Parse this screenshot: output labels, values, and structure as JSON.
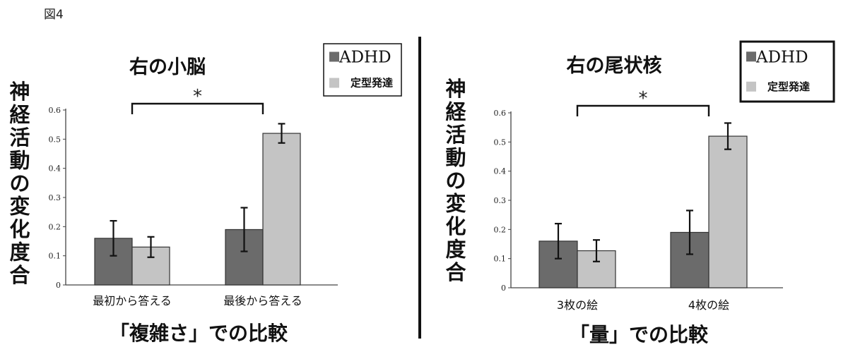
{
  "figure_label": "図4",
  "chart_data": [
    {
      "type": "bar",
      "title": "右の小脳",
      "xlabel": "「複雑さ」での比較",
      "ylabel": "神経活動の変化度合",
      "categories": [
        "最初から答える",
        "最後から答える"
      ],
      "series": [
        {
          "name": "ADHD",
          "values": [
            0.16,
            0.19
          ],
          "errors": [
            0.06,
            0.075
          ],
          "color": "#6b6b6b"
        },
        {
          "name": "定型発達",
          "values": [
            0.13,
            0.52
          ],
          "errors": [
            0.035,
            0.033
          ],
          "color": "#c4c4c4"
        }
      ],
      "ylim": [
        0,
        0.6
      ],
      "yticks": [
        "0",
        "0.1",
        "0.2",
        "0.3",
        "0.4",
        "0.5",
        "0.6"
      ],
      "significance": {
        "label": "*",
        "between": [
          0,
          1
        ]
      },
      "legend_position": "top-right"
    },
    {
      "type": "bar",
      "title": "右の尾状核",
      "xlabel": "「量」での比較",
      "ylabel": "神経活動の変化度合",
      "categories": [
        "3枚の絵",
        "4枚の絵"
      ],
      "series": [
        {
          "name": "ADHD",
          "values": [
            0.16,
            0.19
          ],
          "errors": [
            0.06,
            0.075
          ],
          "color": "#6b6b6b"
        },
        {
          "name": "定型発達",
          "values": [
            0.127,
            0.52
          ],
          "errors": [
            0.037,
            0.045
          ],
          "color": "#c4c4c4"
        }
      ],
      "ylim": [
        0,
        0.6
      ],
      "yticks": [
        "0",
        "0.1",
        "0.2",
        "0.3",
        "0.4",
        "0.5",
        "0.6"
      ],
      "significance": {
        "label": "*",
        "between": [
          0,
          1
        ]
      },
      "legend_position": "top-right"
    }
  ]
}
